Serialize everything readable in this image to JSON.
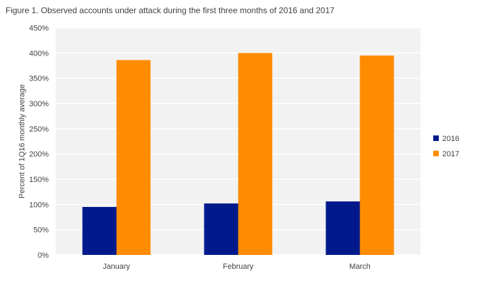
{
  "figure": {
    "title": "Figure 1. Observed accounts under attack during the first three months of 2016 and 2017"
  },
  "chart_data": {
    "type": "bar",
    "title": "Figure 1. Observed accounts under attack during the first three months of 2016 and 2017",
    "xlabel": "",
    "ylabel": "Percent of 1Q16 monthly average",
    "categories": [
      "January",
      "February",
      "March"
    ],
    "series": [
      {
        "name": "2016",
        "color": "#001a8c",
        "values": [
          95,
          102,
          106
        ]
      },
      {
        "name": "2017",
        "color": "#ff8c00",
        "values": [
          386,
          400,
          395
        ]
      }
    ],
    "ylim": [
      0,
      450
    ],
    "yticks": [
      0,
      50,
      100,
      150,
      200,
      250,
      300,
      350,
      400,
      450
    ],
    "ytick_labels": [
      "0%",
      "50%",
      "100%",
      "150%",
      "200%",
      "250%",
      "300%",
      "350%",
      "400%",
      "450%"
    ],
    "grid": true,
    "plot_background": "#f2f2f2",
    "legend_position": "right"
  }
}
